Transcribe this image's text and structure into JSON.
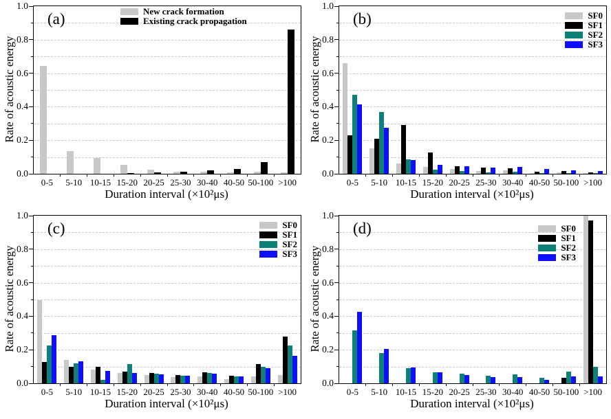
{
  "colors": {
    "sf0_gray": "#c8c8c8",
    "sf1_black": "#000000",
    "sf2_teal": "#0d8078",
    "sf3_blue": "#0f0fff",
    "gridline": "#c9c9c9",
    "axis": "#000000"
  },
  "chart_data": [
    {
      "type": "bar",
      "panel_label": "(a)",
      "xlabel": "Duration interval (×10²μs)",
      "ylabel": "Rate of acoustic energy",
      "ylim": [
        0,
        1.0
      ],
      "yticks": [
        0.0,
        0.2,
        0.4,
        0.6,
        0.8,
        1.0
      ],
      "grid_step": 0.1,
      "grid": "dashed-horizontal",
      "legend_position": "inside-top-center",
      "categories": [
        "0-5",
        "5-10",
        "10-15",
        "15-20",
        "20-25",
        "25-30",
        "30-40",
        "40-50",
        "50-100",
        ">100"
      ],
      "series": [
        {
          "name": "New crack formation",
          "color": "sf0_gray",
          "values": [
            0.645,
            0.135,
            0.095,
            0.053,
            0.026,
            0.012,
            0.013,
            0.008,
            0.012,
            0.008
          ]
        },
        {
          "name": "Existing crack propagation",
          "color": "sf1_black",
          "values": [
            0,
            0,
            0,
            0.005,
            0.01,
            0.012,
            0.022,
            0.03,
            0.07,
            0.86
          ]
        }
      ]
    },
    {
      "type": "bar",
      "panel_label": "(b)",
      "xlabel": "Duration interval (×10²μs)",
      "ylabel": "Rate of acoustic energy",
      "ylim": [
        0,
        1.0
      ],
      "yticks": [
        0.0,
        0.2,
        0.4,
        0.6,
        0.8,
        1.0
      ],
      "grid_step": 0.1,
      "grid": "dashed-horizontal",
      "legend_position": "inside-top-right",
      "categories": [
        "0-5",
        "5-10",
        "10-15",
        "15-20",
        "20-25",
        "25-30",
        "30-40",
        "40-50",
        "50-100",
        ">100"
      ],
      "series": [
        {
          "name": "SF0",
          "color": "sf0_gray",
          "values": [
            0.66,
            0.15,
            0.062,
            0.04,
            0.028,
            0.015,
            0.02,
            0.006,
            0.008,
            0.004
          ]
        },
        {
          "name": "SF1",
          "color": "sf1_black",
          "values": [
            0.23,
            0.21,
            0.292,
            0.125,
            0.045,
            0.035,
            0.032,
            0.014,
            0.018,
            0.01
          ]
        },
        {
          "name": "SF2",
          "color": "sf2_teal",
          "values": [
            0.472,
            0.37,
            0.088,
            0.025,
            0.018,
            0.01,
            0.012,
            0.005,
            0.006,
            0.004
          ]
        },
        {
          "name": "SF3",
          "color": "sf3_blue",
          "values": [
            0.415,
            0.275,
            0.082,
            0.055,
            0.045,
            0.035,
            0.042,
            0.027,
            0.022,
            0.016
          ]
        }
      ]
    },
    {
      "type": "bar",
      "panel_label": "(c)",
      "xlabel": "Duration interval (×10²μs)",
      "ylabel": "Rate of acoustic energy",
      "ylim": [
        0,
        1.0
      ],
      "yticks": [
        0.0,
        0.2,
        0.4,
        0.6,
        0.8,
        1.0
      ],
      "grid_step": 0.1,
      "grid": "dashed-horizontal",
      "legend_position": "inside-top-right",
      "categories": [
        "0-5",
        "5-10",
        "10-15",
        "15-20",
        "20-25",
        "25-30",
        "30-40",
        "40-50",
        "50-100",
        ">100"
      ],
      "series": [
        {
          "name": "SF0",
          "color": "sf0_gray",
          "values": [
            0.495,
            0.14,
            0.08,
            0.063,
            0.048,
            0.035,
            0.04,
            0.024,
            0.04,
            0.048
          ]
        },
        {
          "name": "SF1",
          "color": "sf1_black",
          "values": [
            0.125,
            0.1,
            0.1,
            0.07,
            0.06,
            0.05,
            0.065,
            0.044,
            0.115,
            0.278
          ]
        },
        {
          "name": "SF2",
          "color": "sf2_teal",
          "values": [
            0.225,
            0.12,
            0.022,
            0.115,
            0.058,
            0.046,
            0.062,
            0.04,
            0.1,
            0.225
          ]
        },
        {
          "name": "SF3",
          "color": "sf3_blue",
          "values": [
            0.285,
            0.133,
            0.075,
            0.062,
            0.053,
            0.045,
            0.058,
            0.04,
            0.092,
            0.165
          ]
        }
      ]
    },
    {
      "type": "bar",
      "panel_label": "(d)",
      "xlabel": "Duration interval (×10²μs)",
      "ylabel": "Rate of acoustic energy",
      "ylim": [
        0,
        1.0
      ],
      "yticks": [
        0.0,
        0.2,
        0.4,
        0.6,
        0.8,
        1.0
      ],
      "grid_step": 0.1,
      "grid": "dashed-horizontal",
      "legend_position": "inside-top-right-offset",
      "categories": [
        "0-5",
        "5-10",
        "10-15",
        "15-20",
        "20-25",
        "25-30",
        "30-40",
        "40-50",
        "50-100",
        ">100"
      ],
      "series": [
        {
          "name": "SF0",
          "color": "sf0_gray",
          "values": [
            0,
            0,
            0,
            0,
            0,
            0,
            0,
            0,
            0,
            1.0
          ]
        },
        {
          "name": "SF1",
          "color": "sf1_black",
          "values": [
            0,
            0,
            0,
            0,
            0,
            0,
            0,
            0,
            0.033,
            0.97
          ]
        },
        {
          "name": "SF2",
          "color": "sf2_teal",
          "values": [
            0.315,
            0.182,
            0.09,
            0.065,
            0.058,
            0.046,
            0.053,
            0.031,
            0.068,
            0.1
          ]
        },
        {
          "name": "SF3",
          "color": "sf3_blue",
          "values": [
            0.425,
            0.205,
            0.095,
            0.065,
            0.048,
            0.036,
            0.038,
            0.022,
            0.042,
            0.04
          ]
        }
      ]
    }
  ]
}
